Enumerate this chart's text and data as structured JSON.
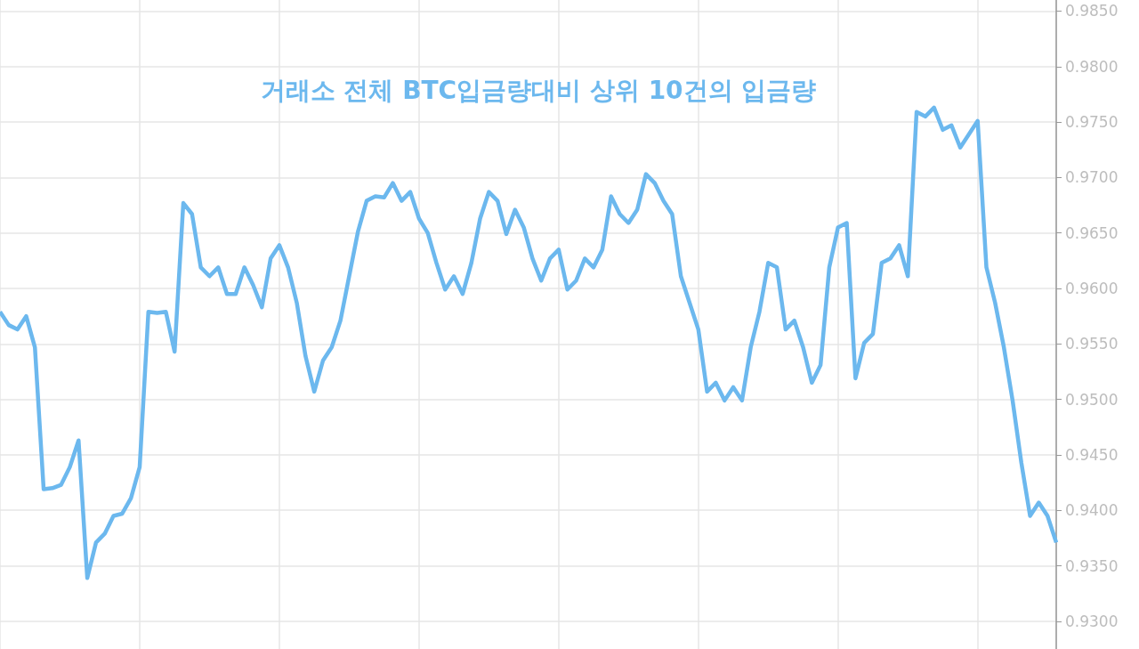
{
  "chart_data": {
    "type": "line",
    "title": "거래소 전체 BTC입금량대비 상위 10건의 입금량",
    "categories": [
      null,
      null,
      null,
      null,
      null,
      null,
      null,
      null,
      null,
      null,
      null,
      null,
      null,
      null,
      null,
      null,
      null,
      null,
      null,
      null,
      null,
      null,
      null,
      null,
      null,
      null,
      null,
      null,
      null,
      null,
      null,
      null,
      null,
      null,
      null,
      null,
      null,
      null,
      null,
      null,
      null,
      null,
      null,
      null,
      null,
      null,
      null,
      null,
      null,
      null,
      null,
      null,
      null,
      null,
      null,
      null,
      null,
      null,
      null,
      null,
      null,
      null,
      null,
      null,
      null,
      null,
      null,
      null,
      null,
      null,
      null,
      null,
      null,
      null,
      null,
      null,
      null,
      null,
      null,
      null,
      null,
      null,
      null,
      null,
      null,
      null,
      null,
      null,
      null,
      null,
      null,
      null,
      null,
      null,
      null,
      null,
      null,
      null,
      null,
      null,
      null,
      null,
      null,
      null,
      null,
      null,
      null,
      null,
      null,
      null,
      null,
      null,
      null,
      null,
      null,
      null,
      null,
      null,
      null,
      null,
      null,
      null
    ],
    "series": [
      {
        "color": "#6cb8ee",
        "values": [
          0.9579,
          0.9567,
          0.9563,
          0.9575,
          0.9547,
          0.9419,
          0.942,
          0.9423,
          0.9439,
          0.9463,
          0.9339,
          0.9371,
          0.9379,
          0.9395,
          0.9397,
          0.9411,
          0.9439,
          0.9579,
          0.9578,
          0.9579,
          0.9543,
          0.9677,
          0.9667,
          0.9619,
          0.9611,
          0.9619,
          0.9595,
          0.9595,
          0.9619,
          0.9603,
          0.9583,
          0.9627,
          0.9639,
          0.9619,
          0.9587,
          0.9539,
          0.9507,
          0.9535,
          0.9547,
          0.9571,
          0.9611,
          0.9651,
          0.9679,
          0.9683,
          0.9682,
          0.9695,
          0.9679,
          0.9687,
          0.9663,
          0.965,
          0.9623,
          0.9599,
          0.9611,
          0.9595,
          0.9623,
          0.9663,
          0.9687,
          0.9679,
          0.9649,
          0.9671,
          0.9655,
          0.9627,
          0.9607,
          0.9627,
          0.9635,
          0.9599,
          0.9607,
          0.9627,
          0.9619,
          0.9635,
          0.9683,
          0.9667,
          0.9659,
          0.9671,
          0.9703,
          0.9695,
          0.9679,
          0.9667,
          0.9611,
          0.9587,
          0.9563,
          0.9507,
          0.9515,
          0.9499,
          0.9511,
          0.9499,
          0.9547,
          0.9579,
          0.9623,
          0.9619,
          0.9563,
          0.9571,
          0.9547,
          0.9515,
          0.9531,
          0.9619,
          0.9655,
          0.9659,
          0.9519,
          0.9551,
          0.9559,
          0.9623,
          0.9627,
          0.9639,
          0.9611,
          0.9759,
          0.9755,
          0.9763,
          0.9743,
          0.9747,
          0.9727,
          0.9739,
          0.9751,
          0.9619,
          0.9587,
          0.9547,
          0.9499,
          0.9443,
          0.9395,
          0.9407,
          0.9395,
          0.9371
        ]
      }
    ],
    "ylim": [
      0.9275,
      0.986
    ],
    "yticks": [
      {
        "value": 0.93,
        "label": "0.9300"
      },
      {
        "value": 0.935,
        "label": "0.9350"
      },
      {
        "value": 0.94,
        "label": "0.9400"
      },
      {
        "value": 0.945,
        "label": "0.9450"
      },
      {
        "value": 0.95,
        "label": "0.9500"
      },
      {
        "value": 0.955,
        "label": "0.9550"
      },
      {
        "value": 0.96,
        "label": "0.9600"
      },
      {
        "value": 0.965,
        "label": "0.9650"
      },
      {
        "value": 0.97,
        "label": "0.9700"
      },
      {
        "value": 0.975,
        "label": "0.9750"
      },
      {
        "value": 0.98,
        "label": "0.9800"
      },
      {
        "value": 0.985,
        "label": "0.9850"
      }
    ],
    "tick_labels": "y",
    "grid": true,
    "marker": "none"
  }
}
